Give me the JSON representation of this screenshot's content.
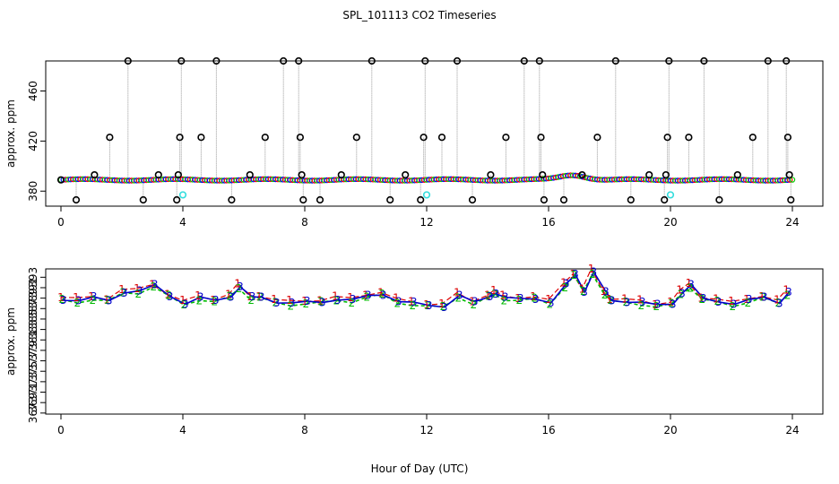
{
  "chart_data": [
    {
      "type": "scatter",
      "title": "SPL_101113  CO2 Timeseries",
      "xlabel": "",
      "ylabel": "approx. ppm",
      "xlim": [
        -0.5,
        25
      ],
      "ylim": [
        368,
        484
      ],
      "xticks": [
        0,
        4,
        8,
        12,
        16,
        20,
        24
      ],
      "yticks": [
        380,
        420,
        460
      ],
      "baseline": {
        "start": 389,
        "step": 0.08,
        "peak_hour": 16.8,
        "peak_value": 393
      },
      "spikes": [
        {
          "x": 0.0,
          "y": 389
        },
        {
          "x": 0.5,
          "y": 373
        },
        {
          "x": 1.1,
          "y": 393
        },
        {
          "x": 1.6,
          "y": 423
        },
        {
          "x": 2.2,
          "y": 484
        },
        {
          "x": 2.7,
          "y": 373
        },
        {
          "x": 3.2,
          "y": 393
        },
        {
          "x": 3.8,
          "y": 373
        },
        {
          "x": 3.85,
          "y": 393
        },
        {
          "x": 3.9,
          "y": 423
        },
        {
          "x": 3.95,
          "y": 484
        },
        {
          "x": 4.6,
          "y": 423
        },
        {
          "x": 5.1,
          "y": 484
        },
        {
          "x": 5.6,
          "y": 373
        },
        {
          "x": 6.2,
          "y": 393
        },
        {
          "x": 6.7,
          "y": 423
        },
        {
          "x": 7.3,
          "y": 484
        },
        {
          "x": 7.8,
          "y": 484
        },
        {
          "x": 7.85,
          "y": 423
        },
        {
          "x": 7.9,
          "y": 393
        },
        {
          "x": 7.95,
          "y": 373
        },
        {
          "x": 8.5,
          "y": 373
        },
        {
          "x": 9.2,
          "y": 393
        },
        {
          "x": 9.7,
          "y": 423
        },
        {
          "x": 10.2,
          "y": 484
        },
        {
          "x": 10.8,
          "y": 373
        },
        {
          "x": 11.3,
          "y": 393
        },
        {
          "x": 11.8,
          "y": 373
        },
        {
          "x": 11.9,
          "y": 423
        },
        {
          "x": 11.95,
          "y": 484
        },
        {
          "x": 12.5,
          "y": 423
        },
        {
          "x": 13.0,
          "y": 484
        },
        {
          "x": 13.5,
          "y": 373
        },
        {
          "x": 14.1,
          "y": 393
        },
        {
          "x": 14.6,
          "y": 423
        },
        {
          "x": 15.2,
          "y": 484
        },
        {
          "x": 15.7,
          "y": 484
        },
        {
          "x": 15.75,
          "y": 423
        },
        {
          "x": 15.8,
          "y": 393
        },
        {
          "x": 15.85,
          "y": 373
        },
        {
          "x": 16.5,
          "y": 373
        },
        {
          "x": 17.1,
          "y": 393
        },
        {
          "x": 17.6,
          "y": 423
        },
        {
          "x": 18.2,
          "y": 484
        },
        {
          "x": 18.7,
          "y": 373
        },
        {
          "x": 19.3,
          "y": 393
        },
        {
          "x": 19.8,
          "y": 373
        },
        {
          "x": 19.85,
          "y": 393
        },
        {
          "x": 19.9,
          "y": 423
        },
        {
          "x": 19.95,
          "y": 484
        },
        {
          "x": 20.6,
          "y": 423
        },
        {
          "x": 21.1,
          "y": 484
        },
        {
          "x": 21.6,
          "y": 373
        },
        {
          "x": 22.2,
          "y": 393
        },
        {
          "x": 22.7,
          "y": 423
        },
        {
          "x": 23.2,
          "y": 484
        },
        {
          "x": 23.8,
          "y": 484
        },
        {
          "x": 23.85,
          "y": 423
        },
        {
          "x": 23.9,
          "y": 393
        },
        {
          "x": 23.95,
          "y": 373
        }
      ],
      "cyan_points": [
        {
          "x": 4.0,
          "y": 377
        },
        {
          "x": 12.0,
          "y": 377
        },
        {
          "x": 20.0,
          "y": 377
        }
      ],
      "colors": {
        "baseline_blue": "#0000ff",
        "baseline_green": "#00cc00",
        "baseline_red": "#ff0000",
        "spike": "#000000",
        "leader": "#999999",
        "cyan": "#33dddd"
      }
    },
    {
      "type": "line",
      "title": "",
      "xlabel": "Hour of Day (UTC)",
      "ylabel": "approx. ppm",
      "xlim": [
        -0.5,
        25
      ],
      "ylim": [
        366.8,
        394.6
      ],
      "xticks": [
        0,
        4,
        8,
        12,
        16,
        20,
        24
      ],
      "yticks": [
        367,
        369,
        371,
        373,
        375,
        377,
        379,
        381,
        383,
        385,
        387,
        389,
        391,
        393
      ],
      "series": [
        {
          "name": "1",
          "color": "#dd0000",
          "marker": "1"
        },
        {
          "name": "2",
          "color": "#00bb00",
          "marker": "2"
        },
        {
          "name": "3",
          "color": "#0000cc",
          "marker": "3"
        }
      ],
      "x": [
        0.0,
        0.5,
        1.0,
        1.5,
        2.0,
        2.5,
        3.0,
        3.5,
        4.0,
        4.5,
        5.0,
        5.5,
        5.8,
        6.2,
        6.5,
        7.0,
        7.5,
        8.0,
        8.5,
        9.0,
        9.5,
        10.0,
        10.5,
        11.0,
        11.5,
        12.0,
        12.5,
        13.0,
        13.5,
        14.0,
        14.2,
        14.5,
        15.0,
        15.5,
        16.0,
        16.5,
        16.8,
        17.1,
        17.4,
        17.8,
        18.0,
        18.5,
        19.0,
        19.5,
        20.0,
        20.3,
        20.6,
        21.0,
        21.5,
        22.0,
        22.5,
        23.0,
        23.5,
        23.8
      ],
      "y": [
        388.8,
        388.5,
        389.0,
        388.6,
        390.2,
        390.3,
        391.4,
        389.5,
        388.0,
        389.0,
        388.5,
        389.4,
        391.2,
        389.0,
        389.2,
        388.3,
        388.0,
        388.2,
        388.3,
        388.8,
        388.6,
        389.4,
        389.8,
        388.4,
        388.0,
        387.6,
        387.5,
        389.5,
        388.1,
        389.4,
        390.0,
        389.0,
        388.8,
        389.0,
        388.2,
        391.5,
        393.5,
        390.4,
        394.0,
        390.0,
        388.6,
        388.4,
        388.1,
        387.6,
        388.0,
        390.0,
        391.4,
        388.9,
        388.5,
        387.8,
        388.5,
        389.2,
        388.2,
        390.0
      ]
    }
  ]
}
